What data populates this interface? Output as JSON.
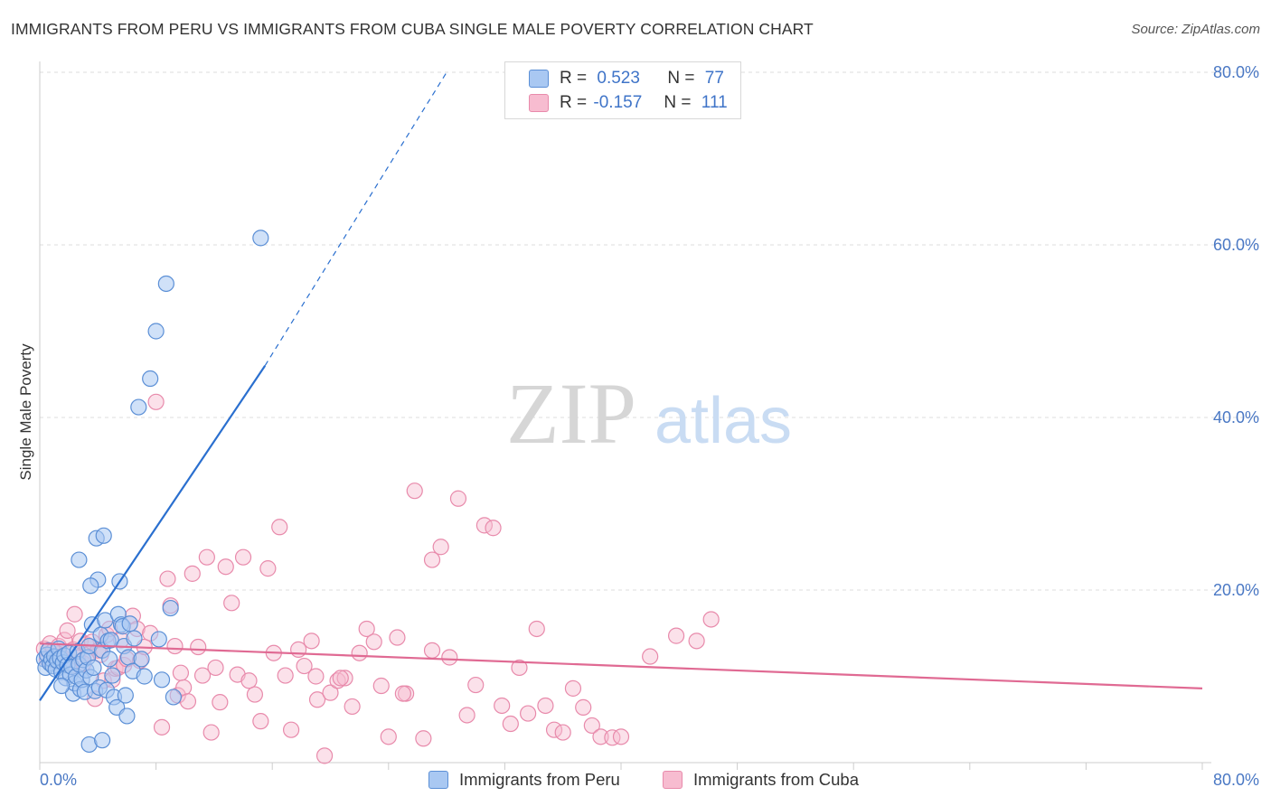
{
  "title": "IMMIGRANTS FROM PERU VS IMMIGRANTS FROM CUBA SINGLE MALE POVERTY CORRELATION CHART",
  "source": "Source: ZipAtlas.com",
  "watermark": {
    "zip": "ZIP",
    "atlas": "atlas"
  },
  "legend": {
    "peru": {
      "r_label": "R =",
      "r_value": "0.523",
      "n_label": "N =",
      "n_value": "77"
    },
    "cuba": {
      "r_label": "R =",
      "r_value": "-0.157",
      "n_label": "N =",
      "n_value": "111"
    }
  },
  "colors": {
    "peru_fill": "#a9c8f2",
    "peru_stroke": "#5b8fd6",
    "peru_line": "#2a6fcf",
    "cuba_fill": "#f7bcd0",
    "cuba_stroke": "#e88aab",
    "cuba_line": "#e06a93",
    "tick_text": "#4a78c4",
    "grid": "#dddddd"
  },
  "chart_data": {
    "type": "scatter",
    "title": "IMMIGRANTS FROM PERU VS IMMIGRANTS FROM CUBA SINGLE MALE POVERTY CORRELATION CHART",
    "xlabel": "",
    "ylabel": "Single Male Poverty",
    "xlim": [
      0,
      80
    ],
    "ylim": [
      0,
      80
    ],
    "x_tick_labels": [
      "0.0%",
      "80.0%"
    ],
    "y_tick_labels": [
      "20.0%",
      "40.0%",
      "60.0%",
      "80.0%"
    ],
    "y_ticks": [
      20,
      40,
      60,
      80
    ],
    "grid": true,
    "legend_position": "bottom",
    "series": [
      {
        "name": "Immigrants from Peru",
        "color": "#5b8fd6",
        "r": 0.523,
        "n": 77,
        "trend": {
          "x0": 0,
          "y0": 7.2,
          "x1": 15.5,
          "y1": 46.0,
          "dash_x1": 28.0,
          "dash_y1": 80.0
        },
        "points": [
          [
            0.3,
            12.0
          ],
          [
            0.4,
            11.0
          ],
          [
            0.5,
            12.5
          ],
          [
            0.6,
            13.0
          ],
          [
            0.7,
            11.5
          ],
          [
            0.8,
            12.0
          ],
          [
            0.9,
            11.2
          ],
          [
            1.0,
            12.3
          ],
          [
            1.1,
            10.8
          ],
          [
            1.2,
            11.8
          ],
          [
            1.3,
            13.2
          ],
          [
            1.4,
            12.1
          ],
          [
            1.5,
            10.5
          ],
          [
            1.6,
            11.6
          ],
          [
            1.7,
            12.4
          ],
          [
            1.8,
            9.8
          ],
          [
            1.9,
            11.3
          ],
          [
            2.0,
            12.7
          ],
          [
            2.1,
            10.2
          ],
          [
            2.2,
            11.1
          ],
          [
            2.3,
            8.0
          ],
          [
            2.4,
            9.2
          ],
          [
            2.5,
            10.0
          ],
          [
            2.6,
            12.9
          ],
          [
            2.7,
            11.4
          ],
          [
            2.8,
            8.5
          ],
          [
            2.9,
            9.6
          ],
          [
            3.0,
            11.9
          ],
          [
            3.1,
            8.2
          ],
          [
            3.2,
            10.7
          ],
          [
            3.3,
            12.2
          ],
          [
            3.4,
            13.5
          ],
          [
            3.5,
            9.9
          ],
          [
            3.6,
            16.0
          ],
          [
            3.7,
            11.0
          ],
          [
            3.8,
            8.3
          ],
          [
            3.9,
            26.0
          ],
          [
            4.0,
            21.2
          ],
          [
            4.1,
            8.7
          ],
          [
            4.2,
            14.8
          ],
          [
            4.3,
            13.0
          ],
          [
            4.4,
            26.3
          ],
          [
            4.5,
            16.5
          ],
          [
            4.6,
            8.4
          ],
          [
            4.7,
            14.1
          ],
          [
            4.8,
            12.0
          ],
          [
            4.9,
            14.2
          ],
          [
            5.0,
            10.1
          ],
          [
            5.1,
            7.6
          ],
          [
            5.3,
            6.4
          ],
          [
            5.4,
            17.2
          ],
          [
            5.5,
            21.0
          ],
          [
            5.6,
            16.0
          ],
          [
            5.7,
            15.8
          ],
          [
            5.8,
            13.5
          ],
          [
            5.9,
            7.8
          ],
          [
            6.0,
            5.4
          ],
          [
            6.1,
            12.2
          ],
          [
            6.2,
            16.1
          ],
          [
            6.4,
            10.6
          ],
          [
            6.5,
            14.4
          ],
          [
            6.8,
            41.2
          ],
          [
            7.0,
            12.0
          ],
          [
            7.2,
            10.0
          ],
          [
            7.6,
            44.5
          ],
          [
            8.0,
            50.0
          ],
          [
            8.2,
            14.3
          ],
          [
            8.4,
            9.6
          ],
          [
            8.7,
            55.5
          ],
          [
            9.0,
            17.9
          ],
          [
            9.2,
            7.6
          ],
          [
            3.5,
            20.5
          ],
          [
            2.7,
            23.5
          ],
          [
            3.4,
            2.1
          ],
          [
            4.3,
            2.6
          ],
          [
            15.2,
            60.8
          ],
          [
            1.5,
            8.9
          ]
        ]
      },
      {
        "name": "Immigrants from Cuba",
        "color": "#e88aab",
        "r": -0.157,
        "n": 111,
        "trend": {
          "x0": 0,
          "y0": 13.8,
          "x1": 80,
          "y1": 8.6
        },
        "points": [
          [
            0.3,
            13.2
          ],
          [
            0.5,
            12.0
          ],
          [
            0.7,
            13.8
          ],
          [
            0.9,
            12.9
          ],
          [
            1.1,
            11.8
          ],
          [
            1.3,
            13.5
          ],
          [
            1.5,
            12.3
          ],
          [
            1.7,
            14.2
          ],
          [
            1.9,
            15.3
          ],
          [
            2.1,
            11.2
          ],
          [
            2.3,
            13.1
          ],
          [
            2.4,
            17.2
          ],
          [
            2.6,
            12.2
          ],
          [
            2.8,
            14.1
          ],
          [
            3.0,
            11.5
          ],
          [
            3.2,
            13.7
          ],
          [
            3.4,
            12.6
          ],
          [
            3.6,
            14.0
          ],
          [
            3.8,
            7.4
          ],
          [
            4.0,
            13.0
          ],
          [
            4.2,
            12.5
          ],
          [
            4.4,
            9.5
          ],
          [
            4.6,
            14.8
          ],
          [
            4.8,
            15.5
          ],
          [
            5.0,
            9.6
          ],
          [
            5.2,
            10.9
          ],
          [
            5.4,
            11.0
          ],
          [
            5.6,
            14.2
          ],
          [
            5.8,
            11.3
          ],
          [
            6.0,
            12.0
          ],
          [
            6.4,
            17.0
          ],
          [
            6.7,
            15.5
          ],
          [
            6.9,
            11.8
          ],
          [
            7.2,
            13.4
          ],
          [
            7.6,
            15.0
          ],
          [
            8.0,
            41.8
          ],
          [
            8.4,
            4.1
          ],
          [
            8.8,
            21.3
          ],
          [
            9.0,
            18.2
          ],
          [
            9.3,
            13.5
          ],
          [
            9.5,
            7.8
          ],
          [
            9.7,
            10.4
          ],
          [
            9.9,
            8.7
          ],
          [
            10.2,
            7.1
          ],
          [
            10.5,
            21.9
          ],
          [
            10.9,
            13.4
          ],
          [
            11.2,
            10.1
          ],
          [
            11.5,
            23.8
          ],
          [
            11.8,
            3.5
          ],
          [
            12.1,
            11.0
          ],
          [
            12.4,
            7.0
          ],
          [
            12.8,
            22.7
          ],
          [
            13.2,
            18.5
          ],
          [
            13.6,
            10.2
          ],
          [
            14.0,
            23.8
          ],
          [
            14.4,
            9.5
          ],
          [
            14.8,
            7.9
          ],
          [
            15.2,
            4.8
          ],
          [
            15.7,
            22.5
          ],
          [
            16.1,
            12.7
          ],
          [
            16.5,
            27.3
          ],
          [
            16.9,
            10.1
          ],
          [
            17.3,
            3.8
          ],
          [
            17.8,
            13.1
          ],
          [
            18.2,
            11.2
          ],
          [
            18.7,
            14.1
          ],
          [
            19.1,
            7.3
          ],
          [
            19.6,
            0.8
          ],
          [
            20.0,
            8.1
          ],
          [
            20.5,
            9.5
          ],
          [
            21.0,
            9.8
          ],
          [
            21.5,
            6.5
          ],
          [
            22.0,
            12.7
          ],
          [
            22.5,
            15.5
          ],
          [
            23.0,
            14.0
          ],
          [
            23.5,
            8.9
          ],
          [
            24.0,
            3.0
          ],
          [
            24.6,
            14.5
          ],
          [
            25.2,
            8.0
          ],
          [
            25.8,
            31.5
          ],
          [
            26.4,
            2.8
          ],
          [
            27.0,
            23.5
          ],
          [
            27.6,
            25.0
          ],
          [
            28.2,
            12.2
          ],
          [
            28.8,
            30.6
          ],
          [
            29.4,
            5.5
          ],
          [
            30.0,
            9.0
          ],
          [
            30.6,
            27.5
          ],
          [
            31.2,
            27.2
          ],
          [
            31.8,
            6.6
          ],
          [
            32.4,
            4.5
          ],
          [
            33.0,
            11.0
          ],
          [
            33.6,
            5.7
          ],
          [
            34.2,
            15.5
          ],
          [
            34.8,
            6.6
          ],
          [
            35.4,
            3.8
          ],
          [
            36.0,
            3.5
          ],
          [
            36.7,
            8.6
          ],
          [
            37.4,
            6.4
          ],
          [
            38.0,
            4.3
          ],
          [
            38.6,
            3.0
          ],
          [
            39.4,
            2.9
          ],
          [
            40.0,
            3.0
          ],
          [
            42.0,
            12.3
          ],
          [
            43.8,
            14.7
          ],
          [
            45.2,
            14.1
          ],
          [
            46.2,
            16.6
          ],
          [
            19.0,
            10.0
          ],
          [
            25.0,
            8.0
          ],
          [
            27.0,
            13.0
          ],
          [
            20.7,
            9.8
          ]
        ]
      }
    ]
  },
  "bottom_legend": {
    "peru": "Immigrants from Peru",
    "cuba": "Immigrants from Cuba"
  }
}
